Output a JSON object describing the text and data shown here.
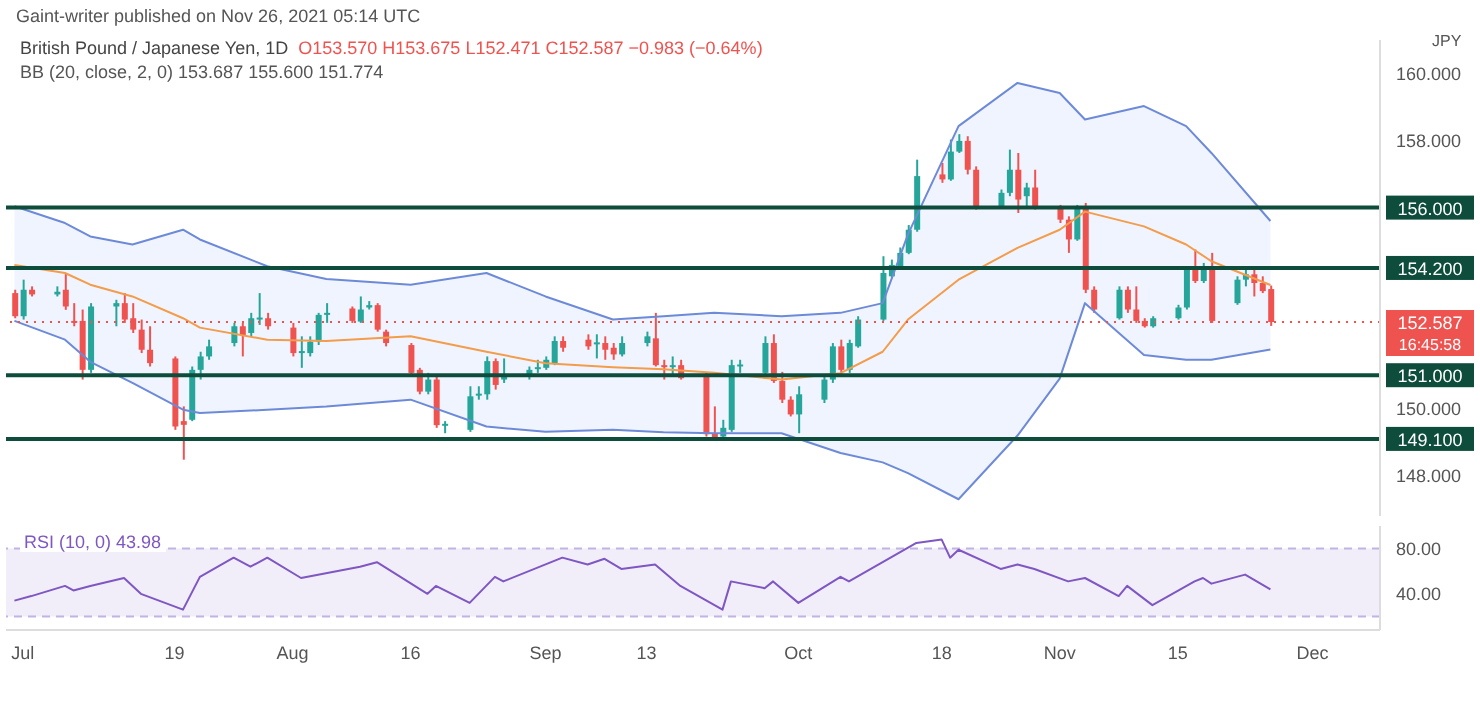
{
  "chart_data": [
    {
      "type": "candlestick",
      "title": "British Pound / Japanese Yen, 1D",
      "annotations": [
        "Gaint-writer published on Nov 26, 2021 05:14 UTC",
        "O153.570 H153.675 L152.471 C152.587 −0.983 (−0.64%)",
        "BB (20, close, 2, 0) 153.687 155.600 151.774",
        "JPY",
        "16:45:58"
      ],
      "x": [
        "2021-06-30",
        "2021-07-01",
        "2021-07-02",
        "2021-07-05",
        "2021-07-06",
        "2021-07-07",
        "2021-07-08",
        "2021-07-09",
        "2021-07-12",
        "2021-07-13",
        "2021-07-14",
        "2021-07-15",
        "2021-07-16",
        "2021-07-19",
        "2021-07-20",
        "2021-07-21",
        "2021-07-22",
        "2021-07-23",
        "2021-07-26",
        "2021-07-27",
        "2021-07-28",
        "2021-07-29",
        "2021-07-30",
        "2021-08-02",
        "2021-08-03",
        "2021-08-04",
        "2021-08-05",
        "2021-08-06",
        "2021-08-09",
        "2021-08-10",
        "2021-08-11",
        "2021-08-12",
        "2021-08-13",
        "2021-08-16",
        "2021-08-17",
        "2021-08-18",
        "2021-08-19",
        "2021-08-20",
        "2021-08-23",
        "2021-08-24",
        "2021-08-25",
        "2021-08-26",
        "2021-08-27",
        "2021-08-30",
        "2021-08-31",
        "2021-09-01",
        "2021-09-02",
        "2021-09-03",
        "2021-09-06",
        "2021-09-07",
        "2021-09-08",
        "2021-09-09",
        "2021-09-10",
        "2021-09-13",
        "2021-09-14",
        "2021-09-15",
        "2021-09-16",
        "2021-09-17",
        "2021-09-20",
        "2021-09-21",
        "2021-09-22",
        "2021-09-23",
        "2021-09-24",
        "2021-09-27",
        "2021-09-28",
        "2021-09-29",
        "2021-09-30",
        "2021-10-01",
        "2021-10-04",
        "2021-10-05",
        "2021-10-06",
        "2021-10-07",
        "2021-10-08",
        "2021-10-11",
        "2021-10-12",
        "2021-10-13",
        "2021-10-14",
        "2021-10-15",
        "2021-10-18",
        "2021-10-19",
        "2021-10-20",
        "2021-10-21",
        "2021-10-22",
        "2021-10-25",
        "2021-10-26",
        "2021-10-27",
        "2021-10-28",
        "2021-10-29",
        "2021-11-01",
        "2021-11-02",
        "2021-11-03",
        "2021-11-04",
        "2021-11-05",
        "2021-11-08",
        "2021-11-09",
        "2021-11-10",
        "2021-11-11",
        "2021-11-12",
        "2021-11-15",
        "2021-11-16",
        "2021-11-17",
        "2021-11-18",
        "2021-11-19",
        "2021-11-22",
        "2021-11-23",
        "2021-11-24",
        "2021-11-25",
        "2021-11-26"
      ],
      "ohlc": [
        [
          153.45,
          153.55,
          152.7,
          152.76
        ],
        [
          152.76,
          153.85,
          152.66,
          153.55
        ],
        [
          153.55,
          153.65,
          153.35,
          153.41
        ],
        [
          153.41,
          153.65,
          153.35,
          153.49
        ],
        [
          153.55,
          154.05,
          152.95,
          153.05
        ],
        [
          152.62,
          153.15,
          152.46,
          152.6
        ],
        [
          152.62,
          152.96,
          150.87,
          151.16
        ],
        [
          151.16,
          153.15,
          151.07,
          153.05
        ],
        [
          153.05,
          153.25,
          152.46,
          153.15
        ],
        [
          153.15,
          153.45,
          152.56,
          152.66
        ],
        [
          152.7,
          153.15,
          152.26,
          152.36
        ],
        [
          152.36,
          152.66,
          151.66,
          151.76
        ],
        [
          151.76,
          152.46,
          151.26,
          151.36
        ],
        [
          151.5,
          151.56,
          149.37,
          149.47
        ],
        [
          149.63,
          150.07,
          148.48,
          149.52
        ],
        [
          149.67,
          151.26,
          149.63,
          151.16
        ],
        [
          151.16,
          151.7,
          150.87,
          151.56
        ],
        [
          151.56,
          152.06,
          151.46,
          151.86
        ],
        [
          151.96,
          152.56,
          151.86,
          152.46
        ],
        [
          152.46,
          152.56,
          151.56,
          152.2
        ],
        [
          152.26,
          152.86,
          152.16,
          152.7
        ],
        [
          152.7,
          153.45,
          152.5,
          152.72
        ],
        [
          152.7,
          152.86,
          152.36,
          152.46
        ],
        [
          152.42,
          152.56,
          151.56,
          151.66
        ],
        [
          151.7,
          152.16,
          151.22,
          151.72
        ],
        [
          151.66,
          152.16,
          151.56,
          152.0
        ],
        [
          152.0,
          152.86,
          151.9,
          152.8
        ],
        [
          152.84,
          153.15,
          152.56,
          152.86
        ],
        [
          152.99,
          153.05,
          152.56,
          152.62
        ],
        [
          152.6,
          153.35,
          152.56,
          152.96
        ],
        [
          153.02,
          153.21,
          152.96,
          153.09
        ],
        [
          153.09,
          153.15,
          152.3,
          152.36
        ],
        [
          152.3,
          152.36,
          151.86,
          151.96
        ],
        [
          151.9,
          151.96,
          151.03,
          151.07
        ],
        [
          151.16,
          151.22,
          150.43,
          150.51
        ],
        [
          150.51,
          151.07,
          150.43,
          150.87
        ],
        [
          150.87,
          150.97,
          149.43,
          149.51
        ],
        [
          149.51,
          149.63,
          149.27,
          149.55
        ],
        [
          149.37,
          150.67,
          149.31,
          150.37
        ],
        [
          150.43,
          150.67,
          150.27,
          150.45
        ],
        [
          150.43,
          151.56,
          150.27,
          151.42
        ],
        [
          151.42,
          151.5,
          150.57,
          150.71
        ],
        [
          150.87,
          151.5,
          150.77,
          150.95
        ],
        [
          150.97,
          151.26,
          150.87,
          151.16
        ],
        [
          151.22,
          151.46,
          151.07,
          151.24
        ],
        [
          151.22,
          151.56,
          151.16,
          151.46
        ],
        [
          151.36,
          152.16,
          151.3,
          152.02
        ],
        [
          152.02,
          152.16,
          151.7,
          151.82
        ],
        [
          152.06,
          152.22,
          151.76,
          151.86
        ],
        [
          151.96,
          152.22,
          151.5,
          151.98
        ],
        [
          151.96,
          152.16,
          151.46,
          151.76
        ],
        [
          151.82,
          151.96,
          151.46,
          151.62
        ],
        [
          151.62,
          152.16,
          151.56,
          151.96
        ],
        [
          151.96,
          152.3,
          151.86,
          152.16
        ],
        [
          152.1,
          152.86,
          151.26,
          151.3
        ],
        [
          151.3,
          151.46,
          150.87,
          151.28
        ],
        [
          151.28,
          151.56,
          150.97,
          151.3
        ],
        [
          151.3,
          151.46,
          150.87,
          150.91
        ],
        [
          150.97,
          151.07,
          149.17,
          149.24
        ],
        [
          149.27,
          150.07,
          149.04,
          149.11
        ],
        [
          149.17,
          149.67,
          149.07,
          149.43
        ],
        [
          149.37,
          151.46,
          149.31,
          151.3
        ],
        [
          151.3,
          151.46,
          151.07,
          151.32
        ],
        [
          151.07,
          152.16,
          151.03,
          151.96
        ],
        [
          151.96,
          152.22,
          150.77,
          150.83
        ],
        [
          150.83,
          151.1,
          150.17,
          150.27
        ],
        [
          150.27,
          150.37,
          149.77,
          149.83
        ],
        [
          149.83,
          150.67,
          149.27,
          150.43
        ],
        [
          150.27,
          150.97,
          150.17,
          150.87
        ],
        [
          150.87,
          151.96,
          150.77,
          151.86
        ],
        [
          151.86,
          152.06,
          151.03,
          151.16
        ],
        [
          151.16,
          152.06,
          151.07,
          151.96
        ],
        [
          151.86,
          152.76,
          151.82,
          152.66
        ],
        [
          152.66,
          154.55,
          152.62,
          154.05
        ],
        [
          153.95,
          154.45,
          153.89,
          154.29
        ],
        [
          154.25,
          154.81,
          154.15,
          154.65
        ],
        [
          154.65,
          155.48,
          154.61,
          155.34
        ],
        [
          155.34,
          157.43,
          155.28,
          156.94
        ],
        [
          156.99,
          157.33,
          156.74,
          156.84
        ],
        [
          156.84,
          158.03,
          156.8,
          157.67
        ],
        [
          157.67,
          158.19,
          157.63,
          157.99
        ],
        [
          157.99,
          158.13,
          156.99,
          157.13
        ],
        [
          157.13,
          157.23,
          155.94,
          156.04
        ],
        [
          156.04,
          156.54,
          156.0,
          156.44
        ],
        [
          156.44,
          157.73,
          156.34,
          157.13
        ],
        [
          157.13,
          157.63,
          155.84,
          156.24
        ],
        [
          156.34,
          156.74,
          156.04,
          156.6
        ],
        [
          156.6,
          157.13,
          155.94,
          156.0
        ],
        [
          156.0,
          156.08,
          155.54,
          155.64
        ],
        [
          155.64,
          155.74,
          154.65,
          155.05
        ],
        [
          155.05,
          156.08,
          155.01,
          156.0
        ],
        [
          156.0,
          156.14,
          153.45,
          153.55
        ],
        [
          153.55,
          153.65,
          152.86,
          152.96
        ],
        [
          152.7,
          153.65,
          152.66,
          153.55
        ],
        [
          153.55,
          153.65,
          152.86,
          152.96
        ],
        [
          152.96,
          153.65,
          152.56,
          152.62
        ],
        [
          152.62,
          152.7,
          152.42,
          152.46
        ],
        [
          152.46,
          152.76,
          152.42,
          152.7
        ],
        [
          152.7,
          153.1,
          152.66,
          153.02
        ],
        [
          153.02,
          154.25,
          152.96,
          154.21
        ],
        [
          154.15,
          154.75,
          153.75,
          153.81
        ],
        [
          153.81,
          154.35,
          153.75,
          154.21
        ],
        [
          154.15,
          154.65,
          152.56,
          152.62
        ],
        [
          153.15,
          153.95,
          153.1,
          153.85
        ],
        [
          153.85,
          154.21,
          153.65,
          154.01
        ],
        [
          154.01,
          154.21,
          153.35,
          153.75
        ],
        [
          153.75,
          153.95,
          153.45,
          153.51
        ],
        [
          153.57,
          153.675,
          152.471,
          152.587
        ]
      ],
      "colors": [
        "#ef5350",
        "#26a69a",
        "#ef5350",
        "#26a69a",
        "#ef5350",
        "#ef5350",
        "#ef5350",
        "#26a69a",
        "#26a69a",
        "#ef5350",
        "#ef5350",
        "#ef5350",
        "#ef5350",
        "#ef5350",
        "#ef5350",
        "#26a69a",
        "#26a69a",
        "#26a69a",
        "#26a69a",
        "#ef5350",
        "#26a69a",
        "#26a69a",
        "#ef5350",
        "#ef5350",
        "#26a69a",
        "#26a69a",
        "#26a69a",
        "#26a69a",
        "#ef5350",
        "#26a69a",
        "#26a69a",
        "#ef5350",
        "#ef5350",
        "#ef5350",
        "#ef5350",
        "#26a69a",
        "#ef5350",
        "#26a69a",
        "#26a69a",
        "#26a69a",
        "#26a69a",
        "#ef5350",
        "#26a69a",
        "#26a69a",
        "#26a69a",
        "#26a69a",
        "#26a69a",
        "#ef5350",
        "#ef5350",
        "#26a69a",
        "#ef5350",
        "#ef5350",
        "#26a69a",
        "#26a69a",
        "#ef5350",
        "#ef5350",
        "#26a69a",
        "#ef5350",
        "#ef5350",
        "#ef5350",
        "#26a69a",
        "#26a69a",
        "#26a69a",
        "#26a69a",
        "#ef5350",
        "#ef5350",
        "#ef5350",
        "#26a69a",
        "#26a69a",
        "#26a69a",
        "#ef5350",
        "#26a69a",
        "#26a69a",
        "#26a69a",
        "#26a69a",
        "#26a69a",
        "#26a69a",
        "#26a69a",
        "#ef5350",
        "#26a69a",
        "#26a69a",
        "#ef5350",
        "#ef5350",
        "#26a69a",
        "#26a69a",
        "#ef5350",
        "#26a69a",
        "#ef5350",
        "#ef5350",
        "#ef5350",
        "#26a69a",
        "#ef5350",
        "#ef5350",
        "#26a69a",
        "#ef5350",
        "#ef5350",
        "#ef5350",
        "#26a69a",
        "#26a69a",
        "#26a69a",
        "#ef5350",
        "#26a69a",
        "#ef5350",
        "#26a69a",
        "#26a69a",
        "#ef5350",
        "#ef5350",
        "#ef5350"
      ],
      "series": [
        {
          "type": "line",
          "color": "#f39c4a",
          "x": [
            "2021-06-30",
            "2021-07-06",
            "2021-07-09",
            "2021-07-14",
            "2021-07-20",
            "2021-07-22",
            "2021-07-30",
            "2021-08-06",
            "2021-08-16",
            "2021-08-25",
            "2021-09-01",
            "2021-09-09",
            "2021-09-15",
            "2021-09-21",
            "2021-09-29",
            "2021-10-06",
            "2021-10-11",
            "2021-10-14",
            "2021-10-20",
            "2021-10-27",
            "2021-11-01",
            "2021-11-04",
            "2021-11-11",
            "2021-11-16",
            "2021-11-19",
            "2021-11-26"
          ],
          "values": [
            154.29,
            154.05,
            153.7,
            153.35,
            152.7,
            152.42,
            152.06,
            152.02,
            152.16,
            151.7,
            151.36,
            151.24,
            151.18,
            151.07,
            150.87,
            151.06,
            151.7,
            152.66,
            153.85,
            154.8,
            155.34,
            155.88,
            155.44,
            154.9,
            154.4,
            153.69
          ],
          "lower": [
            152.62,
            152.06,
            151.4,
            150.77,
            149.97,
            149.87,
            149.97,
            150.07,
            150.27,
            149.47,
            149.31,
            149.37,
            149.3,
            149.27,
            149.27,
            148.68,
            148.4,
            148.08,
            147.3,
            149.2,
            150.9,
            153.15,
            151.6,
            151.46,
            151.46,
            151.77
          ],
          "upper": [
            156.04,
            155.54,
            155.14,
            154.9,
            155.34,
            155.05,
            154.25,
            153.87,
            153.7,
            154.05,
            153.35,
            152.66,
            152.76,
            152.86,
            152.76,
            152.86,
            153.15,
            155.2,
            158.43,
            159.72,
            159.42,
            158.63,
            159.03,
            158.43,
            157.63,
            155.6
          ]
        },
        {
          "type": "line",
          "color": "#6d8ad8",
          "x": [
            "2021-06-30",
            "2021-07-06",
            "2021-07-09",
            "2021-07-14",
            "2021-07-20",
            "2021-07-22",
            "2021-07-30",
            "2021-08-06",
            "2021-08-16",
            "2021-08-25",
            "2021-09-01",
            "2021-09-09",
            "2021-09-15",
            "2021-09-21",
            "2021-09-29",
            "2021-10-06",
            "2021-10-11",
            "2021-10-14",
            "2021-10-20",
            "2021-10-27",
            "2021-11-01",
            "2021-11-04",
            "2021-11-11",
            "2021-11-16",
            "2021-11-19",
            "2021-11-26"
          ],
          "values": [
            156.04,
            155.54,
            155.14,
            154.9,
            155.34,
            155.05,
            154.25,
            153.87,
            153.7,
            154.05,
            153.35,
            152.66,
            152.76,
            152.86,
            152.76,
            152.86,
            153.15,
            155.2,
            158.43,
            159.72,
            159.42,
            158.63,
            159.03,
            158.43,
            157.63,
            155.6
          ]
        },
        {
          "type": "line",
          "color": "#6d8ad8",
          "x": [
            "2021-06-30",
            "2021-07-06",
            "2021-07-09",
            "2021-07-14",
            "2021-07-20",
            "2021-07-22",
            "2021-07-30",
            "2021-08-06",
            "2021-08-16",
            "2021-08-25",
            "2021-09-01",
            "2021-09-09",
            "2021-09-15",
            "2021-09-21",
            "2021-09-29",
            "2021-10-06",
            "2021-10-11",
            "2021-10-14",
            "2021-10-20",
            "2021-10-27",
            "2021-11-01",
            "2021-11-04",
            "2021-11-11",
            "2021-11-16",
            "2021-11-19",
            "2021-11-26"
          ],
          "values": [
            152.62,
            152.06,
            151.4,
            150.77,
            149.97,
            149.87,
            149.97,
            150.07,
            150.27,
            149.47,
            149.31,
            149.37,
            149.3,
            149.27,
            149.27,
            148.68,
            148.4,
            148.08,
            147.3,
            149.2,
            150.9,
            153.15,
            151.6,
            151.46,
            151.46,
            151.77
          ]
        }
      ],
      "ref_lines": [
        {
          "axis": "y",
          "value": 156,
          "label": "156.000",
          "color": "#0e4d3c",
          "line_style": "solid"
        },
        {
          "axis": "y",
          "value": 154.2,
          "label": "154.200",
          "color": "#0e4d3c",
          "line_style": "solid"
        },
        {
          "axis": "y",
          "value": 152.587,
          "label": "152.587",
          "color": "#ef5350",
          "line_style": "dotted"
        },
        {
          "axis": "y",
          "value": 151,
          "label": "151.000",
          "color": "#0e4d3c",
          "line_style": "solid"
        },
        {
          "axis": "y",
          "value": 149.1,
          "label": "149.100",
          "color": "#0e4d3c",
          "line_style": "solid"
        }
      ],
      "xlim": [
        "2021-06-29",
        "2021-12-09"
      ],
      "ylim": [
        146.8,
        161
      ],
      "yticks": [
        {
          "value": 148,
          "label": "148.000"
        },
        {
          "value": 150,
          "label": "150.000"
        },
        {
          "value": 158,
          "label": "158.000"
        },
        {
          "value": 160,
          "label": "160.000"
        }
      ],
      "tick_labels": "y"
    },
    {
      "type": "line",
      "color": "#7e57c2",
      "annotations": [
        "RSI (10, 0) 43.98"
      ],
      "x": [
        "2021-06-30",
        "2021-07-02",
        "2021-07-06",
        "2021-07-07",
        "2021-07-09",
        "2021-07-13",
        "2021-07-15",
        "2021-07-20",
        "2021-07-22",
        "2021-07-26",
        "2021-07-28",
        "2021-07-30",
        "2021-08-03",
        "2021-08-10",
        "2021-08-12",
        "2021-08-18",
        "2021-08-19",
        "2021-08-23",
        "2021-08-26",
        "2021-08-27",
        "2021-09-03",
        "2021-09-06",
        "2021-09-08",
        "2021-09-10",
        "2021-09-14",
        "2021-09-17",
        "2021-09-22",
        "2021-09-23",
        "2021-09-27",
        "2021-09-28",
        "2021-10-01",
        "2021-10-06",
        "2021-10-07",
        "2021-10-15",
        "2021-10-18",
        "2021-10-19",
        "2021-10-20",
        "2021-10-25",
        "2021-10-27",
        "2021-10-29",
        "2021-11-02",
        "2021-11-04",
        "2021-11-08",
        "2021-11-09",
        "2021-11-12",
        "2021-11-17",
        "2021-11-18",
        "2021-11-19",
        "2021-11-23",
        "2021-11-26"
      ],
      "values": [
        34,
        38,
        47,
        43,
        47,
        54,
        40,
        26,
        55,
        72,
        64,
        72,
        54,
        64,
        68,
        40,
        47,
        32,
        55,
        51,
        72,
        66,
        71,
        62,
        66,
        47,
        26,
        51,
        45,
        51,
        32,
        55,
        51,
        85,
        88,
        72,
        79,
        62,
        66,
        62,
        51,
        54,
        38,
        47,
        30,
        51,
        54,
        49,
        57,
        43.98
      ],
      "bands": [
        {
          "axis": "y",
          "from": 20,
          "to": 80,
          "color": "#7e57c2"
        }
      ],
      "ref_lines": [
        {
          "axis": "y",
          "value": 80,
          "color": "#9c88d4",
          "line_style": "dashed"
        },
        {
          "axis": "y",
          "value": 20,
          "color": "#9c88d4",
          "line_style": "dashed"
        }
      ],
      "xlim": [
        "2021-06-29",
        "2021-12-09"
      ],
      "xticks": [
        {
          "value": "2021-07-01",
          "label": "Jul"
        },
        {
          "value": "2021-07-19",
          "label": "19"
        },
        {
          "value": "2021-08-02",
          "label": "Aug"
        },
        {
          "value": "2021-08-16",
          "label": "16"
        },
        {
          "value": "2021-09-01",
          "label": "Sep"
        },
        {
          "value": "2021-09-13",
          "label": "13"
        },
        {
          "value": "2021-10-01",
          "label": "Oct"
        },
        {
          "value": "2021-10-18",
          "label": "18"
        },
        {
          "value": "2021-11-01",
          "label": "Nov"
        },
        {
          "value": "2021-11-15",
          "label": "15"
        },
        {
          "value": "2021-12-01",
          "label": "Dec"
        }
      ],
      "ylim": [
        8,
        100
      ],
      "yticks": [
        {
          "value": 40,
          "label": "40.00"
        },
        {
          "value": 80,
          "label": "80.00"
        }
      ]
    }
  ]
}
